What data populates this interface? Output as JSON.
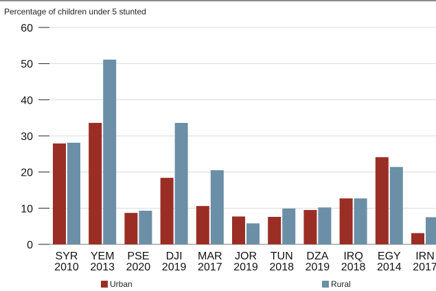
{
  "chart_data": {
    "type": "bar",
    "title": "Percentage of children under 5 stunted",
    "xlabel": "",
    "ylabel": "",
    "ylim": [
      0,
      60
    ],
    "yticks": [
      0,
      10,
      20,
      30,
      40,
      50,
      60
    ],
    "grid": true,
    "legend": "bottom",
    "categories": [
      {
        "code": "SYR",
        "year": "2010"
      },
      {
        "code": "YEM",
        "year": "2013"
      },
      {
        "code": "PSE",
        "year": "2020"
      },
      {
        "code": "DJI",
        "year": "2019"
      },
      {
        "code": "MAR",
        "year": "2017"
      },
      {
        "code": "JOR",
        "year": "2019"
      },
      {
        "code": "TUN",
        "year": "2018"
      },
      {
        "code": "DZA",
        "year": "2019"
      },
      {
        "code": "IRQ",
        "year": "2018"
      },
      {
        "code": "EGY",
        "year": "2014"
      },
      {
        "code": "IRN",
        "year": "2017"
      }
    ],
    "series": [
      {
        "name": "Urban",
        "color": "#9b2e24",
        "values": [
          27.9,
          33.6,
          8.7,
          18.4,
          10.6,
          7.7,
          7.6,
          9.5,
          12.7,
          24.1,
          3.1
        ]
      },
      {
        "name": "Rural",
        "color": "#6b8fa6",
        "values": [
          28.1,
          51.1,
          9.3,
          33.6,
          20.5,
          5.8,
          9.9,
          10.2,
          12.7,
          21.4,
          7.5
        ]
      }
    ]
  }
}
